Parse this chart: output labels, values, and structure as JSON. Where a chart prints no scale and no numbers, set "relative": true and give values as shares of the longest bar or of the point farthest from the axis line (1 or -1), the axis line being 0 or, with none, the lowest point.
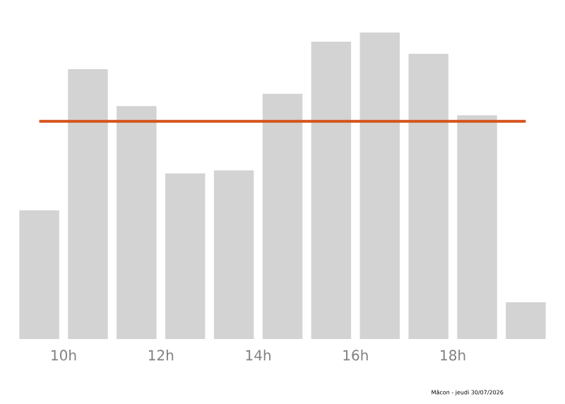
{
  "chart_data": {
    "type": "bar",
    "relative": true,
    "x": [
      9.5,
      10.5,
      11.5,
      12.5,
      13.5,
      14.5,
      15.5,
      16.5,
      17.5,
      18.5,
      19.5
    ],
    "values": [
      0.42,
      0.88,
      0.76,
      0.54,
      0.55,
      0.8,
      0.97,
      1,
      0.93,
      0.73,
      0.12
    ],
    "color": "#d3d3d3",
    "xlim": [
      9.1,
      19.9
    ],
    "xticks": [
      {
        "value": 10,
        "label": "10h"
      },
      {
        "value": 12,
        "label": "12h"
      },
      {
        "value": 14,
        "label": "14h"
      },
      {
        "value": 16,
        "label": "16h"
      },
      {
        "value": 18,
        "label": "18h"
      }
    ],
    "ref_lines": [
      {
        "axis": "y",
        "value": 0.71,
        "color": "#d4541c"
      }
    ],
    "annotations": [
      "Mâcon - jeudi 30/07/2026"
    ]
  }
}
